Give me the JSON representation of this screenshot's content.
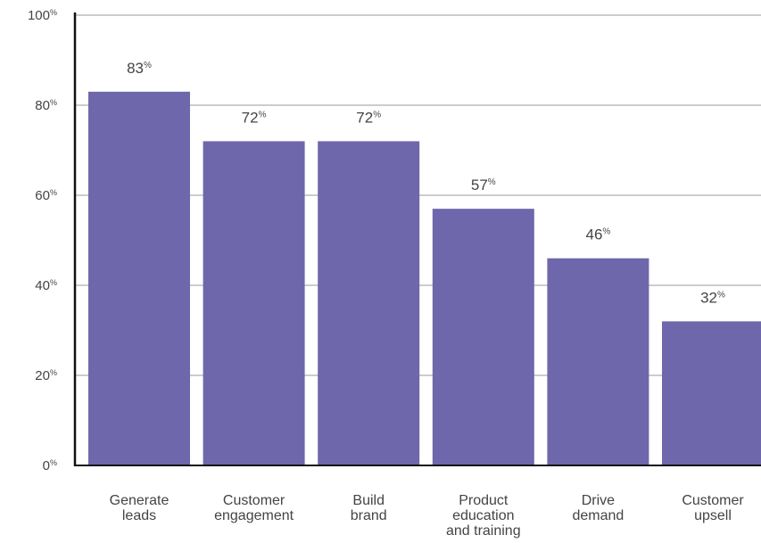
{
  "chart_data": {
    "type": "bar",
    "categories": [
      "Generate leads",
      "Customer engagement",
      "Build brand",
      "Product education and training",
      "Drive demand",
      "Customer upsell"
    ],
    "category_lines": [
      [
        "Generate",
        "leads"
      ],
      [
        "Customer",
        "engagement"
      ],
      [
        "Build",
        "brand"
      ],
      [
        "Product",
        "education",
        "and training"
      ],
      [
        "Drive",
        "demand"
      ],
      [
        "Customer",
        "upsell"
      ]
    ],
    "values": [
      83,
      72,
      72,
      57,
      46,
      32
    ],
    "value_unit": "%",
    "ylim": [
      0,
      100
    ],
    "yticks": [
      0,
      20,
      40,
      60,
      80,
      100
    ],
    "ytick_unit": "%",
    "grid": true,
    "legend": "none",
    "title": "",
    "xlabel": "",
    "ylabel": "",
    "bar_color": "#6e67ab",
    "grid_color": "#9a9a9a",
    "axis_color": "#111111",
    "text_color": "#444444"
  }
}
